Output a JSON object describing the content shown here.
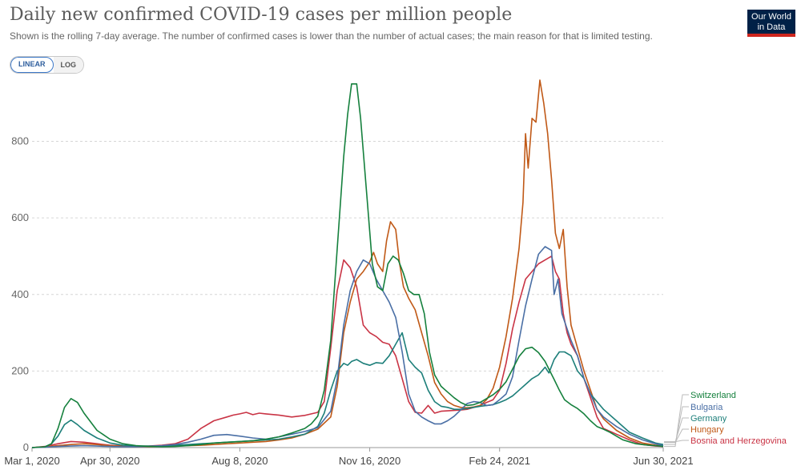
{
  "header": {
    "title": "Daily new confirmed COVID-19 cases per million people",
    "subtitle": "Shown is the rolling 7-day average. The number of confirmed cases is lower than the number of actual cases; the main reason for that is limited testing.",
    "logo_line1": "Our World",
    "logo_line2": "in Data"
  },
  "controls": {
    "linear_label": "LINEAR",
    "log_label": "LOG",
    "selected": "LINEAR"
  },
  "chart_data": {
    "type": "line",
    "title": "Daily new confirmed COVID-19 cases per million people",
    "xlabel": "",
    "ylabel": "",
    "x_range": [
      0,
      486
    ],
    "ylim": [
      0,
      960
    ],
    "y_ticks": [
      0,
      200,
      400,
      600,
      800
    ],
    "x_ticks": [
      {
        "day": 0,
        "label": "Mar 1, 2020"
      },
      {
        "day": 60,
        "label": "Apr 30, 2020"
      },
      {
        "day": 160,
        "label": "Aug 8, 2020"
      },
      {
        "day": 260,
        "label": "Nov 16, 2020"
      },
      {
        "day": 360,
        "label": "Feb 24, 2021"
      },
      {
        "day": 486,
        "label": "Jun 30, 2021"
      }
    ],
    "grid": true,
    "series": [
      {
        "name": "Switzerland",
        "color": "#15803d",
        "x": [
          0,
          10,
          15,
          20,
          25,
          30,
          35,
          40,
          50,
          60,
          70,
          80,
          90,
          100,
          110,
          120,
          130,
          140,
          150,
          160,
          170,
          180,
          190,
          200,
          210,
          215,
          220,
          225,
          230,
          235,
          240,
          243,
          246,
          250,
          253,
          258,
          262,
          266,
          270,
          274,
          278,
          282,
          286,
          290,
          294,
          298,
          302,
          306,
          310,
          315,
          320,
          325,
          330,
          335,
          340,
          345,
          350,
          355,
          360,
          365,
          370,
          375,
          380,
          385,
          390,
          395,
          398,
          402,
          406,
          410,
          415,
          420,
          425,
          430,
          435,
          440,
          445,
          450,
          455,
          460,
          465,
          470,
          475,
          480,
          486
        ],
        "values": [
          0,
          2,
          10,
          50,
          105,
          128,
          118,
          90,
          45,
          22,
          10,
          5,
          3,
          2,
          3,
          5,
          8,
          12,
          14,
          16,
          18,
          22,
          28,
          38,
          50,
          62,
          82,
          150,
          280,
          520,
          760,
          870,
          950,
          950,
          860,
          650,
          480,
          420,
          410,
          480,
          500,
          490,
          455,
          410,
          400,
          400,
          350,
          250,
          190,
          160,
          145,
          130,
          118,
          110,
          112,
          118,
          128,
          138,
          152,
          172,
          205,
          238,
          258,
          262,
          248,
          225,
          205,
          178,
          150,
          125,
          112,
          102,
          88,
          70,
          55,
          48,
          40,
          30,
          20,
          15,
          10,
          8,
          6,
          5,
          3
        ]
      },
      {
        "name": "Bulgaria",
        "color": "#4a6fa5",
        "x": [
          0,
          10,
          20,
          30,
          40,
          50,
          60,
          70,
          80,
          90,
          100,
          110,
          120,
          130,
          140,
          150,
          160,
          170,
          180,
          190,
          200,
          210,
          220,
          230,
          235,
          240,
          245,
          250,
          255,
          260,
          265,
          270,
          275,
          280,
          285,
          290,
          295,
          300,
          305,
          310,
          315,
          320,
          325,
          330,
          335,
          340,
          345,
          350,
          355,
          360,
          365,
          370,
          375,
          380,
          385,
          390,
          395,
          400,
          402,
          405,
          408,
          412,
          415,
          420,
          425,
          430,
          435,
          440,
          450,
          460,
          470,
          480,
          486
        ],
        "values": [
          0,
          1,
          3,
          4,
          5,
          4,
          3,
          2,
          2,
          3,
          5,
          8,
          14,
          22,
          32,
          34,
          30,
          25,
          22,
          28,
          35,
          42,
          52,
          95,
          180,
          320,
          410,
          460,
          490,
          480,
          440,
          410,
          380,
          340,
          250,
          140,
          95,
          80,
          70,
          62,
          62,
          70,
          82,
          98,
          115,
          120,
          118,
          110,
          112,
          125,
          140,
          185,
          280,
          370,
          440,
          505,
          525,
          515,
          400,
          440,
          350,
          310,
          280,
          240,
          180,
          140,
          100,
          80,
          55,
          35,
          20,
          10,
          5
        ]
      },
      {
        "name": "Germany",
        "color": "#1d7f7a",
        "x": [
          0,
          10,
          15,
          20,
          25,
          30,
          35,
          40,
          50,
          60,
          70,
          80,
          90,
          100,
          110,
          120,
          130,
          140,
          150,
          160,
          170,
          180,
          190,
          200,
          210,
          220,
          225,
          230,
          235,
          240,
          243,
          246,
          250,
          255,
          260,
          265,
          270,
          275,
          280,
          285,
          290,
          295,
          300,
          305,
          310,
          315,
          320,
          325,
          330,
          335,
          340,
          345,
          350,
          355,
          360,
          365,
          370,
          375,
          380,
          385,
          390,
          395,
          398,
          402,
          406,
          410,
          415,
          420,
          425,
          430,
          440,
          450,
          460,
          470,
          480,
          486
        ],
        "values": [
          0,
          2,
          10,
          30,
          60,
          72,
          60,
          45,
          25,
          12,
          6,
          4,
          4,
          4,
          6,
          8,
          10,
          12,
          14,
          16,
          18,
          20,
          22,
          28,
          35,
          55,
          90,
          150,
          200,
          220,
          215,
          225,
          230,
          220,
          215,
          222,
          220,
          240,
          270,
          300,
          230,
          210,
          195,
          150,
          120,
          108,
          105,
          100,
          100,
          102,
          105,
          108,
          110,
          112,
          118,
          125,
          135,
          150,
          165,
          180,
          190,
          210,
          195,
          230,
          250,
          250,
          240,
          200,
          180,
          140,
          100,
          70,
          40,
          25,
          12,
          8
        ]
      },
      {
        "name": "Hungary",
        "color": "#c05917",
        "x": [
          0,
          10,
          20,
          30,
          40,
          50,
          60,
          70,
          80,
          90,
          100,
          110,
          120,
          130,
          140,
          150,
          160,
          170,
          180,
          190,
          200,
          210,
          220,
          230,
          235,
          240,
          245,
          250,
          255,
          260,
          263,
          266,
          270,
          273,
          276,
          280,
          283,
          286,
          290,
          295,
          300,
          305,
          310,
          315,
          320,
          325,
          330,
          335,
          340,
          345,
          350,
          355,
          360,
          365,
          370,
          375,
          378,
          380,
          382,
          385,
          388,
          391,
          394,
          397,
          400,
          403,
          406,
          409,
          412,
          415,
          420,
          425,
          430,
          435,
          440,
          450,
          460,
          470,
          480,
          486
        ],
        "values": [
          0,
          2,
          5,
          8,
          10,
          8,
          5,
          3,
          2,
          2,
          3,
          4,
          5,
          6,
          8,
          10,
          12,
          14,
          16,
          20,
          25,
          35,
          48,
          80,
          160,
          300,
          380,
          440,
          460,
          485,
          510,
          480,
          460,
          540,
          590,
          570,
          480,
          420,
          390,
          360,
          300,
          240,
          170,
          140,
          120,
          110,
          105,
          104,
          106,
          110,
          125,
          155,
          210,
          290,
          390,
          520,
          640,
          820,
          730,
          860,
          850,
          960,
          900,
          820,
          700,
          560,
          520,
          570,
          420,
          320,
          260,
          200,
          150,
          100,
          75,
          45,
          25,
          12,
          6,
          4
        ]
      },
      {
        "name": "Bosnia and Herzegovina",
        "color": "#c93445",
        "x": [
          0,
          10,
          20,
          30,
          40,
          50,
          60,
          70,
          80,
          90,
          100,
          110,
          120,
          130,
          140,
          150,
          155,
          160,
          165,
          170,
          175,
          180,
          190,
          200,
          210,
          220,
          225,
          230,
          235,
          240,
          245,
          250,
          255,
          260,
          265,
          270,
          275,
          280,
          285,
          290,
          295,
          300,
          305,
          310,
          315,
          320,
          325,
          330,
          335,
          340,
          345,
          350,
          355,
          360,
          365,
          370,
          375,
          380,
          385,
          390,
          395,
          400,
          403,
          406,
          409,
          412,
          415,
          420,
          425,
          430,
          435,
          440,
          450,
          460,
          470,
          480,
          486
        ],
        "values": [
          0,
          3,
          10,
          16,
          14,
          10,
          6,
          4,
          3,
          4,
          6,
          10,
          22,
          50,
          70,
          80,
          85,
          88,
          92,
          86,
          90,
          88,
          85,
          80,
          84,
          92,
          120,
          260,
          410,
          490,
          470,
          420,
          320,
          300,
          290,
          275,
          270,
          240,
          180,
          120,
          92,
          90,
          110,
          90,
          95,
          96,
          97,
          98,
          100,
          105,
          110,
          118,
          125,
          150,
          220,
          310,
          380,
          440,
          460,
          480,
          490,
          500,
          460,
          440,
          350,
          300,
          270,
          240,
          180,
          130,
          80,
          50,
          35,
          20,
          8,
          4,
          3
        ]
      }
    ]
  }
}
